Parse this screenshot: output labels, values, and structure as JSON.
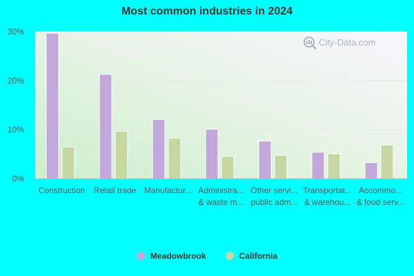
{
  "chart_data": {
    "type": "bar",
    "title": "Most common industries in 2024",
    "xlabel": "",
    "ylabel": "",
    "ylim": [
      0,
      30
    ],
    "yticks": [
      "0%",
      "10%",
      "20%",
      "30%"
    ],
    "categories": [
      [
        "Construction"
      ],
      [
        "Retail trade"
      ],
      [
        "Manufactur..."
      ],
      [
        "Administra...",
        "& waste m..."
      ],
      [
        "Other servi...",
        "public adm..."
      ],
      [
        "Transportat...",
        "& warehou..."
      ],
      [
        "Accommo...",
        "& food serv..."
      ]
    ],
    "series": [
      {
        "name": "Meadowbrook",
        "color": "#c0a8d8",
        "values": [
          29.7,
          21.3,
          12.1,
          10.1,
          7.7,
          5.4,
          3.3
        ]
      },
      {
        "name": "California",
        "color": "#c5d8a4",
        "values": [
          6.5,
          9.7,
          8.3,
          4.6,
          4.8,
          5.1,
          6.9
        ]
      }
    ],
    "grid": true,
    "legend_position": "bottom"
  },
  "watermark": {
    "text": "City-Data.com",
    "icon": "magnifier-icon"
  }
}
